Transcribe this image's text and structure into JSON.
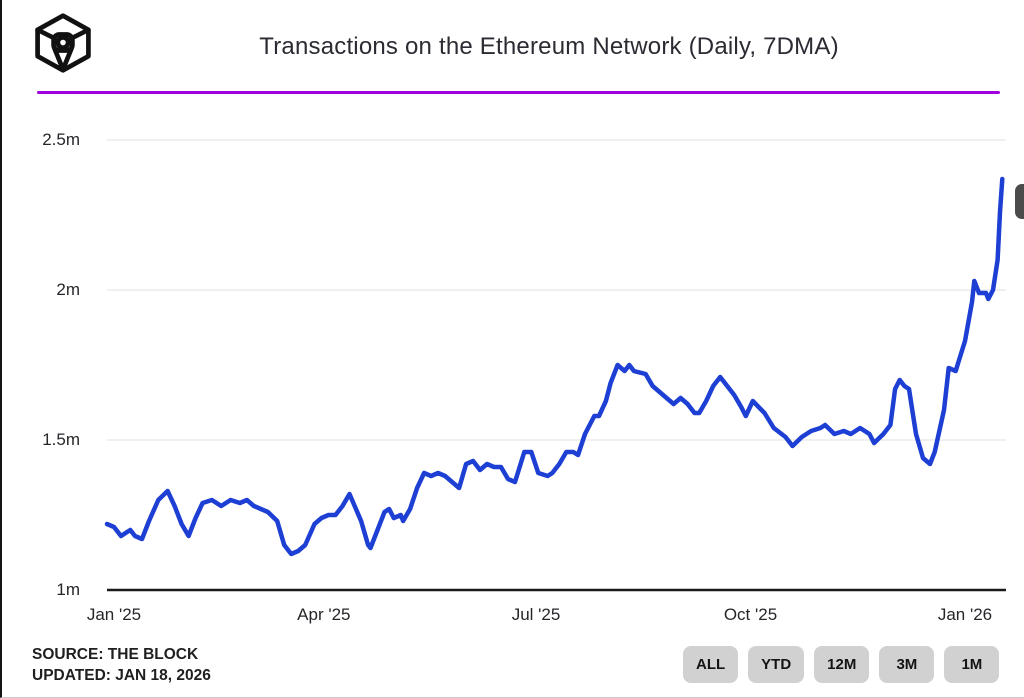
{
  "header": {
    "title": "Transactions on the Ethereum Network (Daily, 7DMA)",
    "logo": "the-block-logo"
  },
  "colors": {
    "divider_purple": "#a201df",
    "line_blue": "#1d3fd4",
    "grid_gray": "#ececec",
    "axis_dark": "#1a1a1a",
    "button_gray": "#d1d1d1"
  },
  "footer": {
    "source": "SOURCE: THE BLOCK",
    "updated": "UPDATED: JAN 18, 2026"
  },
  "range_buttons": [
    "ALL",
    "YTD",
    "12M",
    "3M",
    "1M"
  ],
  "chart_data": {
    "type": "line",
    "title": "Transactions on the Ethereum Network (Daily, 7DMA)",
    "series_name": "Ethereum daily transactions, 7-day moving average (millions)",
    "unit": "millions of transactions",
    "grid": true,
    "ylim": [
      1.0,
      2.5
    ],
    "x_start_date": "2024-12-29",
    "day0_date": "2025-01-01",
    "x_end_date": "2026-01-16",
    "y_axis": {
      "ticks": [
        {
          "label": "1m",
          "value": 1.0
        },
        {
          "label": "1.5m",
          "value": 1.5
        },
        {
          "label": "2m",
          "value": 2.0
        },
        {
          "label": "2.5m",
          "value": 2.5
        }
      ]
    },
    "x_axis": {
      "ticks": [
        {
          "label": "Jan '25",
          "day": 0
        },
        {
          "label": "Apr '25",
          "day": 90
        },
        {
          "label": "Jul '25",
          "day": 181
        },
        {
          "label": "Oct '25",
          "day": 273
        },
        {
          "label": "Jan '26",
          "day": 365
        }
      ]
    },
    "points": [
      [
        -3,
        1.22
      ],
      [
        0,
        1.21
      ],
      [
        3,
        1.18
      ],
      [
        7,
        1.2
      ],
      [
        9,
        1.18
      ],
      [
        12,
        1.17
      ],
      [
        15,
        1.23
      ],
      [
        19,
        1.3
      ],
      [
        23,
        1.33
      ],
      [
        26,
        1.28
      ],
      [
        29,
        1.22
      ],
      [
        32,
        1.18
      ],
      [
        35,
        1.24
      ],
      [
        38,
        1.29
      ],
      [
        42,
        1.3
      ],
      [
        46,
        1.28
      ],
      [
        50,
        1.3
      ],
      [
        54,
        1.29
      ],
      [
        57,
        1.3
      ],
      [
        60,
        1.28
      ],
      [
        63,
        1.27
      ],
      [
        66,
        1.26
      ],
      [
        70,
        1.23
      ],
      [
        73,
        1.15
      ],
      [
        76,
        1.12
      ],
      [
        79,
        1.13
      ],
      [
        82,
        1.15
      ],
      [
        86,
        1.22
      ],
      [
        89,
        1.24
      ],
      [
        92,
        1.25
      ],
      [
        95,
        1.25
      ],
      [
        98,
        1.28
      ],
      [
        101,
        1.32
      ],
      [
        106,
        1.23
      ],
      [
        109,
        1.15
      ],
      [
        110,
        1.14
      ],
      [
        113,
        1.2
      ],
      [
        116,
        1.26
      ],
      [
        118,
        1.27
      ],
      [
        120,
        1.24
      ],
      [
        123,
        1.25
      ],
      [
        124,
        1.23
      ],
      [
        127,
        1.27
      ],
      [
        130,
        1.34
      ],
      [
        133,
        1.39
      ],
      [
        136,
        1.38
      ],
      [
        139,
        1.39
      ],
      [
        142,
        1.38
      ],
      [
        145,
        1.36
      ],
      [
        148,
        1.34
      ],
      [
        151,
        1.42
      ],
      [
        154,
        1.43
      ],
      [
        157,
        1.4
      ],
      [
        160,
        1.42
      ],
      [
        163,
        1.41
      ],
      [
        166,
        1.41
      ],
      [
        169,
        1.37
      ],
      [
        172,
        1.36
      ],
      [
        176,
        1.46
      ],
      [
        179,
        1.46
      ],
      [
        182,
        1.39
      ],
      [
        186,
        1.38
      ],
      [
        188,
        1.39
      ],
      [
        191,
        1.42
      ],
      [
        194,
        1.46
      ],
      [
        197,
        1.46
      ],
      [
        199,
        1.45
      ],
      [
        202,
        1.52
      ],
      [
        206,
        1.58
      ],
      [
        208,
        1.58
      ],
      [
        211,
        1.63
      ],
      [
        213,
        1.69
      ],
      [
        216,
        1.75
      ],
      [
        219,
        1.73
      ],
      [
        221,
        1.75
      ],
      [
        223,
        1.73
      ],
      [
        228,
        1.72
      ],
      [
        231,
        1.68
      ],
      [
        234,
        1.66
      ],
      [
        237,
        1.64
      ],
      [
        240,
        1.62
      ],
      [
        243,
        1.64
      ],
      [
        246,
        1.62
      ],
      [
        249,
        1.59
      ],
      [
        251,
        1.59
      ],
      [
        254,
        1.63
      ],
      [
        257,
        1.68
      ],
      [
        260,
        1.71
      ],
      [
        263,
        1.68
      ],
      [
        266,
        1.65
      ],
      [
        269,
        1.61
      ],
      [
        271,
        1.58
      ],
      [
        274,
        1.63
      ],
      [
        279,
        1.59
      ],
      [
        283,
        1.54
      ],
      [
        288,
        1.51
      ],
      [
        291,
        1.48
      ],
      [
        295,
        1.51
      ],
      [
        299,
        1.53
      ],
      [
        303,
        1.54
      ],
      [
        305,
        1.55
      ],
      [
        309,
        1.52
      ],
      [
        313,
        1.53
      ],
      [
        316,
        1.52
      ],
      [
        320,
        1.54
      ],
      [
        324,
        1.52
      ],
      [
        326,
        1.49
      ],
      [
        330,
        1.52
      ],
      [
        333,
        1.55
      ],
      [
        335,
        1.67
      ],
      [
        337,
        1.7
      ],
      [
        339,
        1.68
      ],
      [
        341,
        1.67
      ],
      [
        344,
        1.52
      ],
      [
        347,
        1.44
      ],
      [
        350,
        1.42
      ],
      [
        352,
        1.46
      ],
      [
        356,
        1.6
      ],
      [
        358,
        1.74
      ],
      [
        361,
        1.73
      ],
      [
        363,
        1.78
      ],
      [
        365,
        1.83
      ],
      [
        368,
        1.96
      ],
      [
        369,
        2.03
      ],
      [
        371,
        1.99
      ],
      [
        374,
        1.99
      ],
      [
        375,
        1.97
      ],
      [
        377,
        2.0
      ],
      [
        379,
        2.1
      ],
      [
        380,
        2.26
      ],
      [
        381,
        2.37
      ]
    ]
  }
}
